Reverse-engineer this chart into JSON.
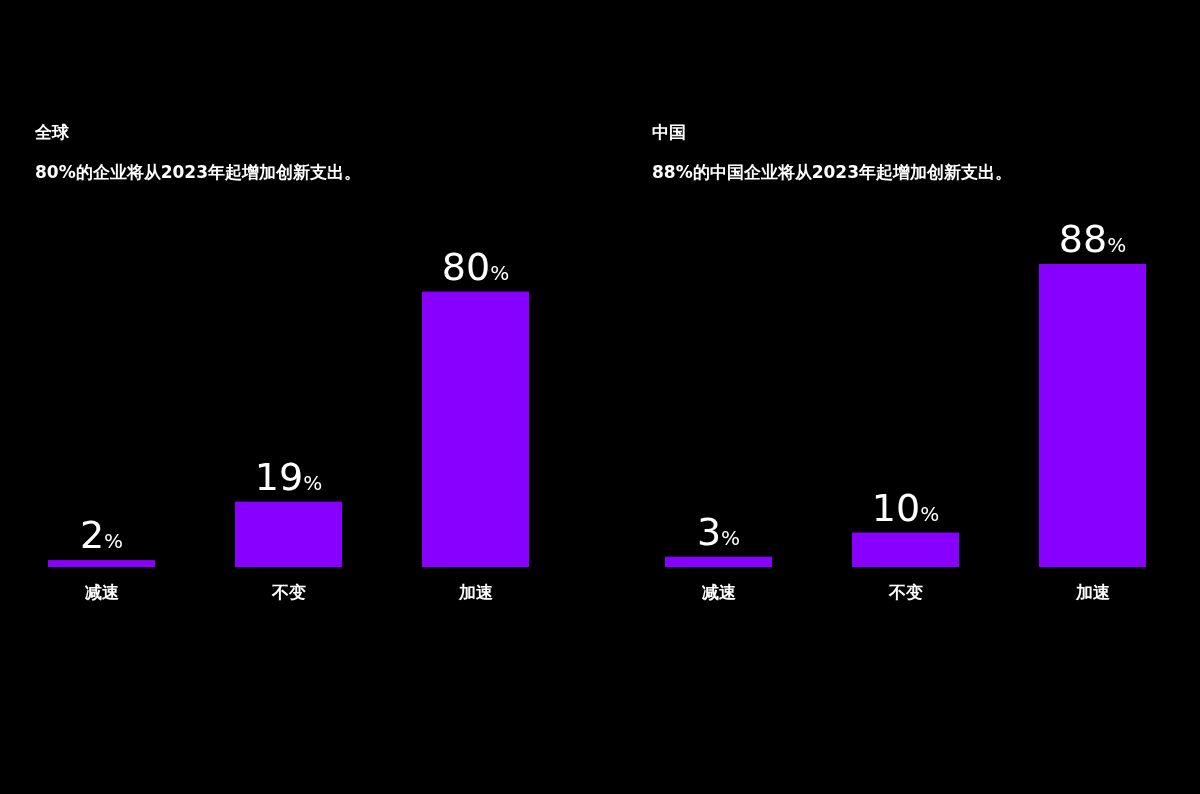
{
  "chart_data": [
    {
      "type": "bar",
      "title": "全球",
      "subtitle": "80%的企业将从2023年起增加创新支出。",
      "categories": [
        "减速",
        "不变",
        "加速"
      ],
      "values": [
        2,
        19,
        80
      ],
      "color": "#8800ff",
      "value_labels": [
        "2%",
        "19%",
        "80%"
      ]
    },
    {
      "type": "bar",
      "title": "中国",
      "subtitle": "88%的中国企业将从2023年起增加创新支出。",
      "categories": [
        "减速",
        "不变",
        "加速"
      ],
      "values": [
        3,
        10,
        88
      ],
      "color": "#8800ff",
      "value_labels": [
        "3%",
        "10%",
        "88%"
      ]
    }
  ]
}
